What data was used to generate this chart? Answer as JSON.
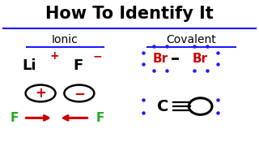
{
  "bg_color": "#ffffff",
  "title": "How To Identify It",
  "title_color": "#000000",
  "title_fontsize": 15,
  "ionic_label": "Ionic",
  "covalent_label": "Covalent",
  "label_color": "#000000",
  "label_fontsize": 10,
  "underline_color": "#1a1aff",
  "ion_color": "#cc0000",
  "atom_color": "#000000",
  "green_color": "#22aa22",
  "arrow_color": "#cc0000",
  "br_color": "#cc0000",
  "dot_color": "#1a1aff"
}
